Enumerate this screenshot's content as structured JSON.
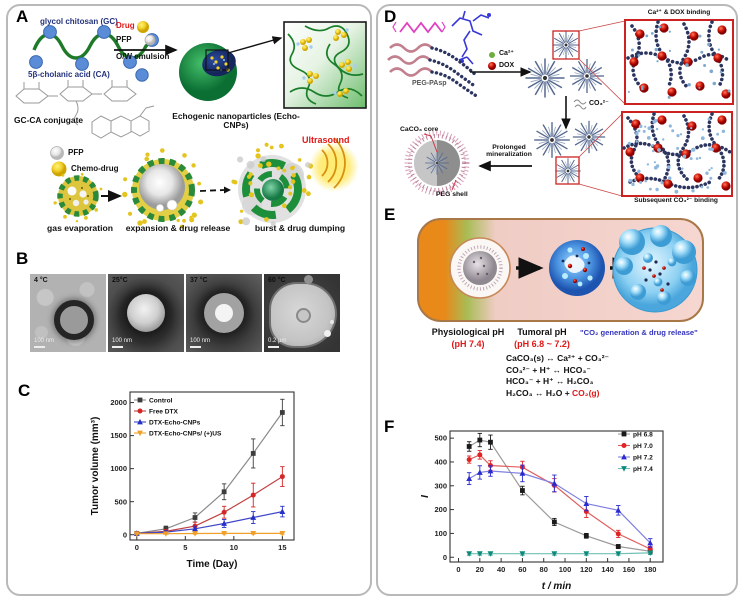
{
  "panelA": {
    "label": "A",
    "glycol_chitosan": "glycol chitosan (GC)",
    "cholanic_acid": "5β-cholanic acid (CA)",
    "drug": "Drug",
    "pfp": "PFP",
    "ow_emulsion": "O/W emulsion",
    "gcca_conjugate": "GC-CA conjugate",
    "echo_cnps": "Echogenic nanoparticles (Echo-CNPs)",
    "legend_pfp": "PFP",
    "legend_chemodrug": "Chemo-drug",
    "ultrasound": "Ultrasound",
    "stage1": "gas evaporation",
    "stage2": "expansion & drug release",
    "stage3": "burst & drug dumping"
  },
  "panelB": {
    "label": "B",
    "images": [
      {
        "temp": "4 °C",
        "scale": "100 nm"
      },
      {
        "temp": "25°C",
        "scale": "100 nm"
      },
      {
        "temp": "37 °C",
        "scale": "100 nm"
      },
      {
        "temp": "60 °C",
        "scale": "0.2 μm"
      }
    ]
  },
  "panelC": {
    "label": "C"
  },
  "panelD": {
    "label": "D",
    "peg_pasp": "PEG-PAsp",
    "ca_label": "Ca²⁺",
    "dox_label": "DOX",
    "co3_label": "CO₃²⁻",
    "inset1_label": "Ca²⁺ & DOX binding",
    "inset2_label": "Subsequent CO₃²⁻ binding",
    "mineralization": "Prolonged mineralization",
    "caco3_core": "CaCO₃ core",
    "peg_shell": "PEG shell"
  },
  "panelE": {
    "label": "E",
    "physiological": "Physiological pH",
    "physiological_ph": "(pH 7.4)",
    "tumoral": "Tumoral pH",
    "tumoral_ph": "(pH 6.8 ~ 7.2)",
    "quote": "\"CO₂ generation & drug release\"",
    "eq1": "CaCO₃(s) ↔ Ca²⁺ + CO₃²⁻",
    "eq2": "CO₃²⁻ + H⁺ ↔ HCO₃⁻",
    "eq3": "HCO₃⁻ + H⁺ ↔ H₂CO₃",
    "eq4_black": "H₂CO₃ ↔ H₂O + ",
    "eq4_red": "CO₂(g)"
  },
  "panelF": {
    "label": "F"
  },
  "chart_data": [
    {
      "id": "C",
      "type": "line",
      "title": "",
      "xlabel": "Time (Day)",
      "ylabel": "Tumor volume (mm³)",
      "x": [
        0,
        3,
        6,
        9,
        12,
        15
      ],
      "series": [
        {
          "name": "Control",
          "marker": "square",
          "color": "#3d3d3d",
          "line_color": "#8a8a8a",
          "values": [
            20,
            90,
            260,
            650,
            1230,
            1850
          ],
          "errors": [
            15,
            40,
            70,
            120,
            220,
            200
          ]
        },
        {
          "name": "Free DTX",
          "marker": "circle",
          "color": "#d42626",
          "line_color": "#c04040",
          "values": [
            20,
            50,
            130,
            340,
            600,
            880
          ],
          "errors": [
            10,
            30,
            60,
            90,
            180,
            150
          ]
        },
        {
          "name": "DTX-Echo-CNPs",
          "marker": "triangle-up",
          "color": "#2430c8",
          "line_color": "#4048c8",
          "values": [
            20,
            40,
            90,
            170,
            260,
            350
          ],
          "errors": [
            10,
            20,
            40,
            60,
            90,
            80
          ]
        },
        {
          "name": "DTX-Echo-CNPs/ (+)US",
          "marker": "triangle-down",
          "color": "#f0a028",
          "line_color": "#f0a028",
          "values": [
            15,
            15,
            18,
            20,
            20,
            20
          ],
          "errors": [
            8,
            8,
            10,
            10,
            12,
            12
          ]
        }
      ],
      "xlim": [
        -0.7,
        16.2
      ],
      "ylim": [
        -80,
        2160
      ],
      "xticks": [
        0,
        5,
        10,
        15
      ],
      "yticks": [
        0,
        500,
        1000,
        1500,
        2000
      ],
      "legend_position": "top-left",
      "grid": false,
      "italic_labels": false
    },
    {
      "id": "F",
      "type": "line",
      "title": "",
      "xlabel": "t / min",
      "ylabel": "I",
      "x": [
        10,
        20,
        30,
        60,
        90,
        120,
        150,
        180
      ],
      "series": [
        {
          "name": "pH 6.8",
          "marker": "square",
          "color": "#1a1a1a",
          "line_color": "#9a9a9a",
          "values": [
            465,
            492,
            483,
            280,
            148,
            90,
            45,
            25
          ],
          "errors": [
            20,
            28,
            30,
            18,
            15,
            10,
            8,
            8
          ]
        },
        {
          "name": "pH 7.0",
          "marker": "circle",
          "color": "#e02424",
          "line_color": "#e06060",
          "values": [
            410,
            430,
            385,
            378,
            302,
            192,
            98,
            35
          ],
          "errors": [
            15,
            18,
            20,
            25,
            28,
            25,
            15,
            10
          ]
        },
        {
          "name": "pH 7.2",
          "marker": "triangle-up",
          "color": "#2a2ad0",
          "line_color": "#8080e0",
          "values": [
            330,
            356,
            362,
            352,
            310,
            225,
            197,
            60
          ],
          "errors": [
            25,
            28,
            22,
            35,
            35,
            30,
            20,
            18
          ]
        },
        {
          "name": "pH 7.4",
          "marker": "triangle-down",
          "color": "#0e8a7a",
          "line_color": "#70c0b8",
          "values": [
            15,
            15,
            15,
            15,
            15,
            15,
            15,
            18
          ],
          "errors": [
            6,
            6,
            6,
            6,
            6,
            6,
            6,
            6
          ]
        }
      ],
      "xlim": [
        -8,
        192
      ],
      "ylim": [
        -20,
        530
      ],
      "xticks": [
        0,
        20,
        40,
        60,
        80,
        100,
        120,
        140,
        160,
        180
      ],
      "yticks": [
        0,
        100,
        200,
        300,
        400,
        500
      ],
      "legend_position": "top-right",
      "grid": false,
      "italic_labels": true
    }
  ]
}
